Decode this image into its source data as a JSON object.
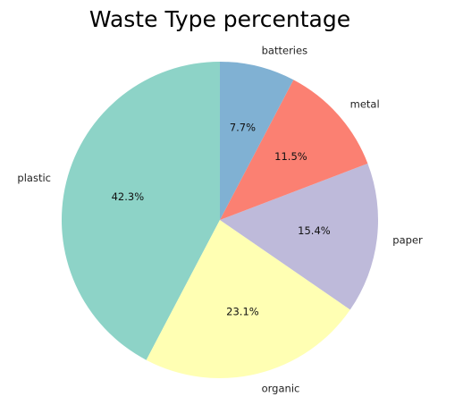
{
  "chart_data": {
    "type": "pie",
    "title": "Waste Type percentage",
    "start_angle_deg": 90,
    "direction": "counterclockwise",
    "slices": [
      {
        "label": "plastic",
        "value": 42.3,
        "pct_label": "42.3%",
        "color": "#8dd3c7"
      },
      {
        "label": "organic",
        "value": 23.1,
        "pct_label": "23.1%",
        "color": "#ffffb3"
      },
      {
        "label": "paper",
        "value": 15.4,
        "pct_label": "15.4%",
        "color": "#bebada"
      },
      {
        "label": "metal",
        "value": 11.5,
        "pct_label": "11.5%",
        "color": "#fb8072"
      },
      {
        "label": "batteries",
        "value": 7.7,
        "pct_label": "7.7%",
        "color": "#80b1d3"
      }
    ]
  }
}
